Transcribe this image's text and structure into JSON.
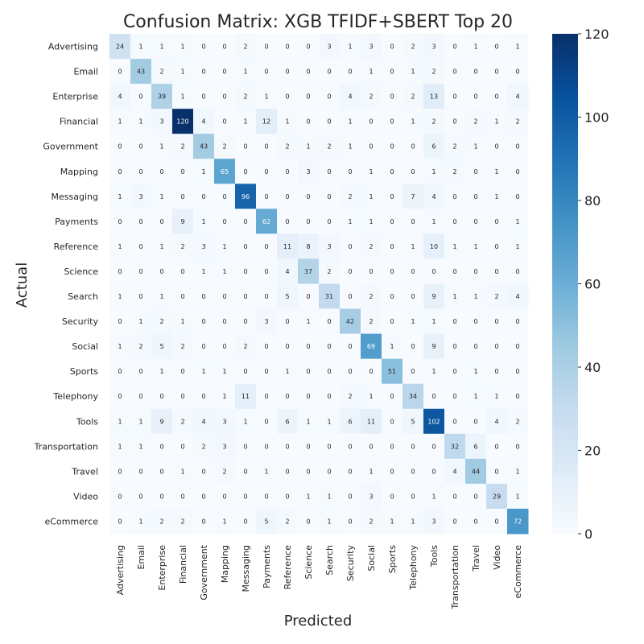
{
  "chart_data": {
    "type": "heatmap",
    "title": "Confusion Matrix: XGB TFIDF+SBERT Top 20",
    "xlabel": "Predicted",
    "ylabel": "Actual",
    "labels": [
      "Advertising",
      "Email",
      "Enterprise",
      "Financial",
      "Government",
      "Mapping",
      "Messaging",
      "Payments",
      "Reference",
      "Science",
      "Search",
      "Security",
      "Social",
      "Sports",
      "Telephony",
      "Tools",
      "Transportation",
      "Travel",
      "Video",
      "eCommerce"
    ],
    "matrix": [
      [
        24,
        1,
        1,
        1,
        0,
        0,
        2,
        0,
        0,
        0,
        3,
        1,
        3,
        0,
        2,
        3,
        0,
        1,
        0,
        1
      ],
      [
        0,
        43,
        2,
        1,
        0,
        0,
        1,
        0,
        0,
        0,
        0,
        0,
        1,
        0,
        1,
        2,
        0,
        0,
        0,
        0
      ],
      [
        4,
        0,
        39,
        1,
        0,
        0,
        2,
        1,
        0,
        0,
        0,
        4,
        2,
        0,
        2,
        13,
        0,
        0,
        0,
        4
      ],
      [
        1,
        1,
        3,
        120,
        4,
        0,
        1,
        12,
        1,
        0,
        0,
        1,
        0,
        0,
        1,
        2,
        0,
        2,
        1,
        2
      ],
      [
        0,
        0,
        1,
        2,
        43,
        2,
        0,
        0,
        2,
        1,
        2,
        1,
        0,
        0,
        0,
        6,
        2,
        1,
        0,
        0
      ],
      [
        0,
        0,
        0,
        0,
        1,
        65,
        0,
        0,
        0,
        3,
        0,
        0,
        1,
        0,
        0,
        1,
        2,
        0,
        1,
        0
      ],
      [
        1,
        3,
        1,
        0,
        0,
        0,
        96,
        0,
        0,
        0,
        0,
        2,
        1,
        0,
        7,
        4,
        0,
        0,
        1,
        0
      ],
      [
        0,
        0,
        0,
        9,
        1,
        0,
        0,
        62,
        0,
        0,
        0,
        1,
        1,
        0,
        0,
        1,
        0,
        0,
        0,
        1
      ],
      [
        1,
        0,
        1,
        2,
        3,
        1,
        0,
        0,
        11,
        8,
        3,
        0,
        2,
        0,
        1,
        10,
        1,
        1,
        0,
        1
      ],
      [
        0,
        0,
        0,
        0,
        1,
        1,
        0,
        0,
        4,
        37,
        2,
        0,
        0,
        0,
        0,
        0,
        0,
        0,
        0,
        0
      ],
      [
        1,
        0,
        1,
        0,
        0,
        0,
        0,
        0,
        5,
        0,
        31,
        0,
        2,
        0,
        0,
        9,
        1,
        1,
        2,
        4
      ],
      [
        0,
        1,
        2,
        1,
        0,
        0,
        0,
        3,
        0,
        1,
        0,
        42,
        2,
        0,
        1,
        1,
        0,
        0,
        0,
        0
      ],
      [
        1,
        2,
        5,
        2,
        0,
        0,
        2,
        0,
        0,
        0,
        0,
        0,
        69,
        1,
        0,
        9,
        0,
        0,
        0,
        0
      ],
      [
        0,
        0,
        1,
        0,
        1,
        1,
        0,
        0,
        1,
        0,
        0,
        0,
        0,
        51,
        0,
        1,
        0,
        1,
        0,
        0
      ],
      [
        0,
        0,
        0,
        0,
        0,
        1,
        11,
        0,
        0,
        0,
        0,
        2,
        1,
        0,
        34,
        0,
        0,
        1,
        1,
        0
      ],
      [
        1,
        1,
        9,
        2,
        4,
        3,
        1,
        0,
        6,
        1,
        1,
        6,
        11,
        0,
        5,
        102,
        0,
        0,
        4,
        2
      ],
      [
        1,
        1,
        0,
        0,
        2,
        3,
        0,
        0,
        0,
        0,
        0,
        0,
        0,
        0,
        0,
        0,
        32,
        6,
        0,
        0
      ],
      [
        0,
        0,
        0,
        1,
        0,
        2,
        0,
        1,
        0,
        0,
        0,
        0,
        1,
        0,
        0,
        0,
        4,
        44,
        0,
        1
      ],
      [
        0,
        0,
        0,
        0,
        0,
        0,
        0,
        0,
        0,
        1,
        1,
        0,
        3,
        0,
        0,
        1,
        0,
        0,
        29,
        1
      ],
      [
        0,
        1,
        2,
        2,
        0,
        1,
        0,
        5,
        2,
        0,
        1,
        0,
        2,
        1,
        1,
        3,
        0,
        0,
        0,
        72
      ]
    ],
    "colorbar": {
      "min": 0,
      "max": 120,
      "ticks": [
        0,
        20,
        40,
        60,
        80,
        100,
        120
      ]
    },
    "colormap": "Blues",
    "colors": {
      "low": "#f7fbff",
      "high": "#08306b"
    }
  }
}
